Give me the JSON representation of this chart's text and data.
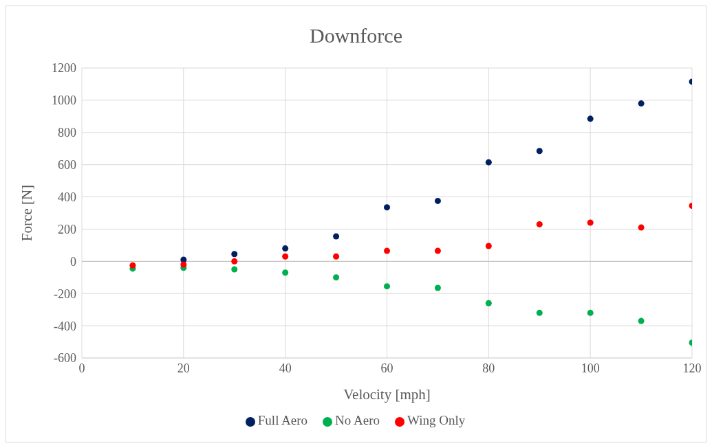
{
  "chart_data": {
    "type": "scatter",
    "title": "Downforce",
    "xlabel": "Velocity [mph]",
    "ylabel": "Force [N]",
    "x": [
      10,
      20,
      30,
      40,
      50,
      60,
      70,
      80,
      90,
      100,
      110,
      120
    ],
    "series": [
      {
        "name": "Full Aero",
        "color": "#002060",
        "values": [
          null,
          10,
          45,
          80,
          155,
          335,
          375,
          615,
          685,
          885,
          980,
          1115
        ]
      },
      {
        "name": "No Aero",
        "color": "#00b050",
        "values": [
          -45,
          -40,
          -50,
          -70,
          -100,
          -155,
          -165,
          -260,
          -320,
          -320,
          -370,
          -505
        ]
      },
      {
        "name": "Wing Only",
        "color": "#ff0000",
        "values": [
          -25,
          -20,
          0,
          30,
          30,
          65,
          65,
          95,
          230,
          240,
          210,
          345
        ]
      }
    ],
    "xlim": [
      0,
      120
    ],
    "xticks": [
      0,
      20,
      40,
      60,
      80,
      100,
      120
    ],
    "ylim": [
      -600,
      1200
    ],
    "yticks": [
      -600,
      -400,
      -200,
      0,
      200,
      400,
      600,
      800,
      1000,
      1200
    ],
    "grid": true,
    "legend": "bottom",
    "marker": "circle"
  }
}
